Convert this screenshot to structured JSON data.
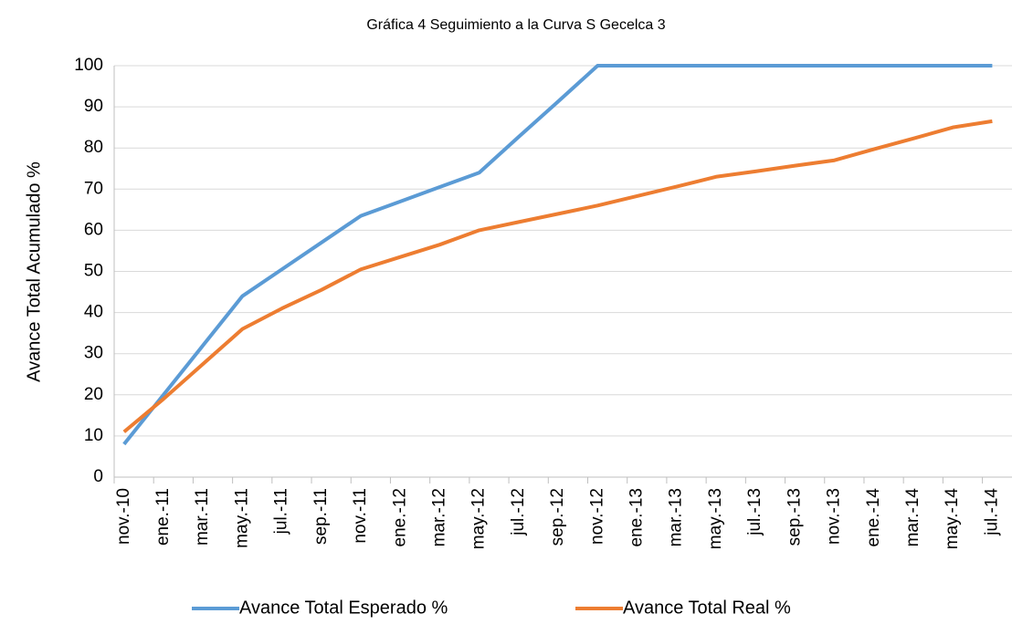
{
  "chart_data": {
    "type": "line",
    "title": "Gráfica 4 Seguimiento a la Curva S Gecelca 3",
    "y_label": "Avance Total Acumulado %",
    "categories": [
      "nov.-10",
      "ene.-11",
      "mar.-11",
      "may.-11",
      "jul.-11",
      "sep.-11",
      "nov.-11",
      "ene.-12",
      "mar.-12",
      "may.-12",
      "jul.-12",
      "sep.-12",
      "nov.-12",
      "ene.-13",
      "mar.-13",
      "may.-13",
      "jul.-13",
      "sep.-13",
      "nov.-13",
      "ene.-14",
      "mar.-14",
      "may.-14",
      "jul.-14"
    ],
    "series": [
      {
        "name": "Avance Total Esperado %",
        "color": "#5b9bd5",
        "values": [
          8,
          20,
          32,
          44,
          50.5,
          57,
          63.5,
          67,
          70.5,
          74,
          82.7,
          91.3,
          100,
          100,
          100,
          100,
          100,
          100,
          100,
          100,
          100,
          100,
          100
        ]
      },
      {
        "name": "Avance Total Real %",
        "color": "#ed7d31",
        "values": [
          11,
          19,
          27.5,
          36,
          41,
          45.5,
          50.5,
          53.5,
          56.5,
          60,
          62,
          64,
          66,
          68.3,
          70.6,
          73,
          74.3,
          75.7,
          77,
          79.7,
          82.3,
          85,
          86.5
        ]
      }
    ],
    "ylim": [
      0,
      100
    ],
    "yticks": [
      0,
      10,
      20,
      30,
      40,
      50,
      60,
      70,
      80,
      90,
      100
    ],
    "grid": true,
    "legend": "bottom"
  }
}
